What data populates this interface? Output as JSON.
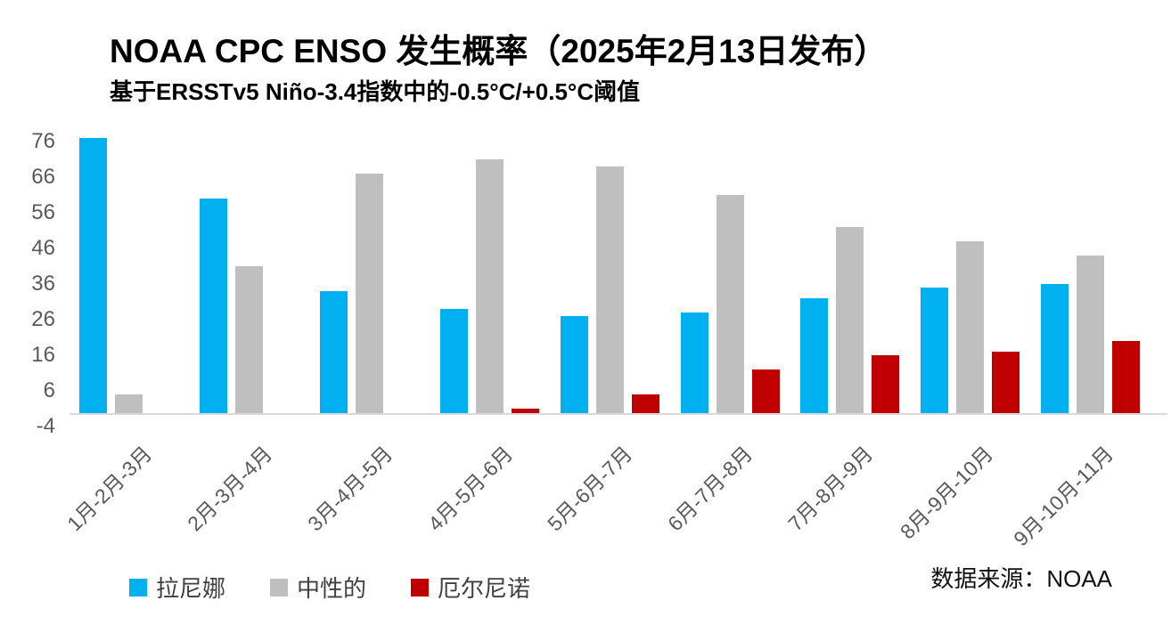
{
  "header": {
    "title": "NOAA CPC ENSO 发生概率（2025年2月13日发布）",
    "subtitle": "基于ERSSTv5 Niño-3.4指数中的-0.5°C/+0.5°C阈值"
  },
  "source_note": "数据来源：NOAA",
  "chart_data": {
    "type": "bar",
    "title": "NOAA CPC ENSO 发生概率（2025年2月13日发布）",
    "subtitle": "基于ERSSTv5 Niño-3.4指数中的-0.5°C/+0.5°C阈值",
    "categories": [
      "1月-2月-3月",
      "2月-3月-4月",
      "3月-4月-5月",
      "4月-5月-6月",
      "5月-6月-7月",
      "6月-7月-8月",
      "7月-8月-9月",
      "8月-9月-10月",
      "9月-10月-11月"
    ],
    "series": [
      {
        "name": "拉尼娜",
        "color": "#00B0F0",
        "values": [
          77,
          60,
          34,
          29,
          27,
          28,
          32,
          35,
          36
        ]
      },
      {
        "name": "中性的",
        "color": "#BFBFBF",
        "values": [
          5,
          41,
          67,
          71,
          69,
          61,
          52,
          48,
          44
        ]
      },
      {
        "name": "厄尔尼诺",
        "color": "#C00000",
        "values": [
          0,
          0,
          0,
          1,
          5,
          12,
          16,
          17,
          20
        ]
      }
    ],
    "xlabel": "",
    "ylabel": "",
    "ylim": [
      -4,
      76
    ],
    "yticks": [
      -4,
      6,
      16,
      26,
      36,
      46,
      56,
      66,
      76
    ],
    "grid": false,
    "legend_position": "bottom-left",
    "axis_color": "#D9D9D9",
    "tick_label_color": "#595959"
  }
}
